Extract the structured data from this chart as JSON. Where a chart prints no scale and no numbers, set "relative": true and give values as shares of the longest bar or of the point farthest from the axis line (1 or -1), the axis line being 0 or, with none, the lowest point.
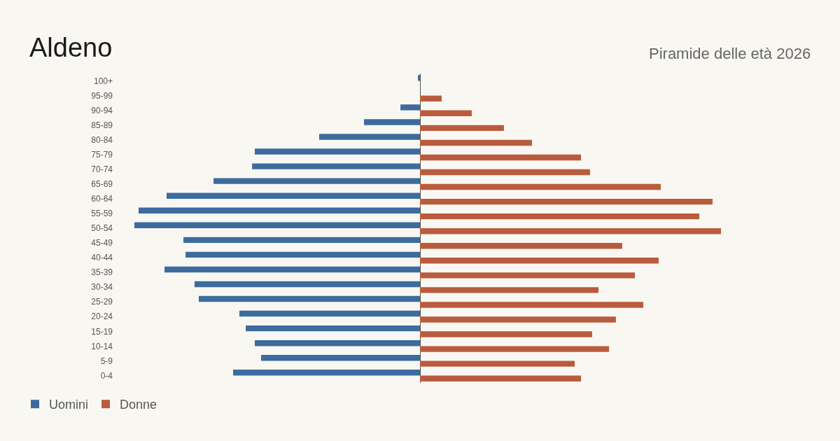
{
  "chart_data": {
    "type": "bar",
    "orientation": "horizontal",
    "relative": true,
    "title": "Aldeno",
    "subtitle": "Piramide delle età 2026",
    "categories": [
      "100+",
      "95-99",
      "90-94",
      "85-89",
      "80-84",
      "75-79",
      "70-74",
      "65-69",
      "60-64",
      "55-59",
      "50-54",
      "45-49",
      "40-44",
      "35-39",
      "30-34",
      "25-29",
      "20-24",
      "15-19",
      "10-14",
      "5-9",
      "0-4"
    ],
    "series": [
      {
        "name": "Uomini",
        "color": "#3d6b9e",
        "values": [
          -0.007,
          0,
          -0.065,
          -0.186,
          -0.335,
          -0.549,
          -0.558,
          -0.686,
          -0.842,
          -0.935,
          -0.949,
          -0.786,
          -0.779,
          -0.849,
          -0.749,
          -0.735,
          -0.6,
          -0.579,
          -0.549,
          -0.528,
          -0.621
        ]
      },
      {
        "name": "Donne",
        "color": "#b95c3e",
        "values": [
          0,
          0.072,
          0.172,
          0.279,
          0.372,
          0.535,
          0.565,
          0.8,
          0.972,
          0.928,
          1,
          0.672,
          0.793,
          0.714,
          0.593,
          0.742,
          0.651,
          0.572,
          0.628,
          0.514,
          0.535
        ]
      }
    ],
    "legend": "bottom left",
    "grid": false
  }
}
